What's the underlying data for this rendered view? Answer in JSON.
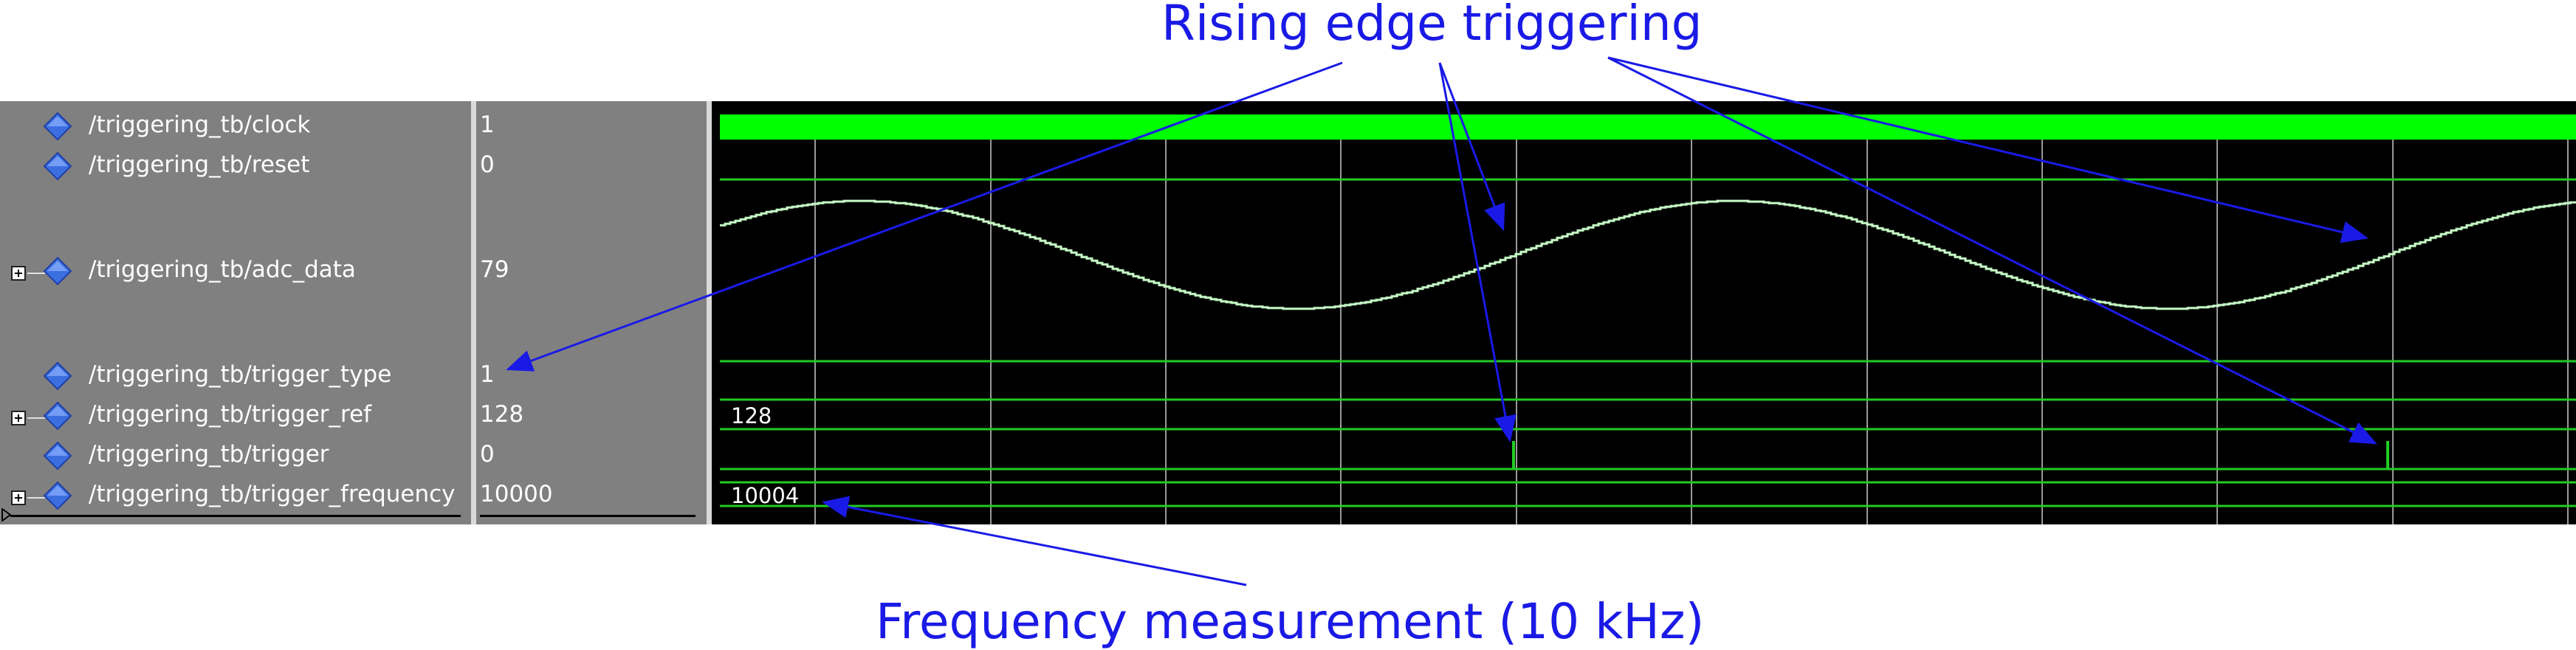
{
  "signals": [
    {
      "name": "/triggering_tb/clock",
      "value": "1",
      "expandable": false
    },
    {
      "name": "/triggering_tb/reset",
      "value": "0",
      "expandable": false
    },
    {
      "name": "/triggering_tb/adc_data",
      "value": "79",
      "expandable": true
    },
    {
      "name": "/triggering_tb/trigger_type",
      "value": "1",
      "expandable": false
    },
    {
      "name": "/triggering_tb/trigger_ref",
      "value": "128",
      "expandable": true
    },
    {
      "name": "/triggering_tb/trigger",
      "value": "0",
      "expandable": false
    },
    {
      "name": "/triggering_tb/trigger_frequency",
      "value": "10000",
      "expandable": true
    }
  ],
  "waveforms": {
    "trigger_ref_label": "128",
    "trigger_frequency_label": "10004"
  },
  "annotations": {
    "rising_edge": "Rising edge triggering",
    "frequency": "Frequency measurement (10 kHz)"
  },
  "colors": {
    "signal_panel": "#808080",
    "wave_background": "#000000",
    "clock_bar": "#00ff00",
    "bus_line": "#22cc22",
    "adc_trace": "#c8ffc8",
    "grid": "#9a9a9a",
    "annotation": "#1a1ae6",
    "icon": "#3b6fe0"
  },
  "icons": {
    "signal_icon": "blue-diamond-icon",
    "expand_icon": "plus-box-icon"
  }
}
